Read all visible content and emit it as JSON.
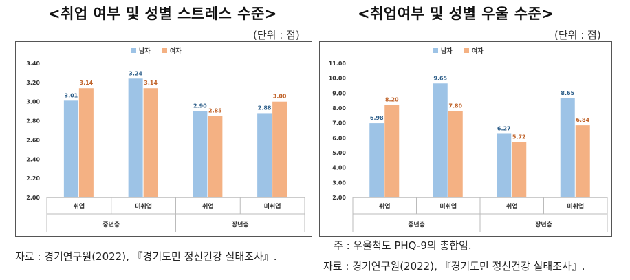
{
  "left": {
    "title": "<취업 여부 및 성별 스트레스 수준>",
    "unit": "(단위 : 점)",
    "source": "자료 : 경기연구원(2022), 『경기도민 정신건강 실태조사』.",
    "chart_data": {
      "type": "bar",
      "groups": [
        {
          "label": "중년층",
          "categories": [
            "취업",
            "미취업"
          ]
        },
        {
          "label": "장년층",
          "categories": [
            "취업",
            "미취업"
          ]
        }
      ],
      "categories": [
        "취업",
        "미취업",
        "취업",
        "미취업"
      ],
      "series": [
        {
          "name": "남자",
          "values": [
            3.01,
            3.24,
            2.9,
            2.88
          ],
          "labels": [
            "3.01",
            "3.24",
            "2.90",
            "2.88"
          ],
          "color": "#9dc3e6"
        },
        {
          "name": "여자",
          "values": [
            3.14,
            3.14,
            2.85,
            3.0
          ],
          "labels": [
            "3.14",
            "3.14",
            "2.85",
            "3.00"
          ],
          "color": "#f4b183"
        }
      ],
      "label_colors": [
        "#2e5f8a",
        "#c0632a"
      ],
      "ylim": [
        2.0,
        3.4
      ],
      "yticks": [
        "2.00",
        "2.20",
        "2.40",
        "2.60",
        "2.80",
        "3.00",
        "3.20",
        "3.40"
      ],
      "legend_position": "top-center",
      "grid": false
    }
  },
  "right": {
    "title": "<취업여부 및 성별 우울 수준>",
    "unit": "(단위 : 점)",
    "note": "주 : 우울척도 PHQ-9의 총합임.",
    "source": "자료 : 경기연구원(2022), 『경기도민 정신건강 실태조사』.",
    "chart_data": {
      "type": "bar",
      "groups": [
        {
          "label": "중년층",
          "categories": [
            "취업",
            "미취업"
          ]
        },
        {
          "label": "장년층",
          "categories": [
            "취업",
            "미취업"
          ]
        }
      ],
      "categories": [
        "취업",
        "미취업",
        "취업",
        "미취업"
      ],
      "series": [
        {
          "name": "남자",
          "values": [
            6.98,
            9.65,
            6.27,
            8.65
          ],
          "labels": [
            "6.98",
            "9.65",
            "6.27",
            "8.65"
          ],
          "color": "#9dc3e6"
        },
        {
          "name": "여자",
          "values": [
            8.2,
            7.8,
            5.72,
            6.84
          ],
          "labels": [
            "8.20",
            "7.80",
            "5.72",
            "6.84"
          ],
          "color": "#f4b183"
        }
      ],
      "label_colors": [
        "#2e5f8a",
        "#c0632a"
      ],
      "ylim": [
        2.0,
        11.0
      ],
      "yticks": [
        "2.00",
        "3.00",
        "4.00",
        "5.00",
        "6.00",
        "7.00",
        "8.00",
        "9.00",
        "10.00",
        "11.00"
      ],
      "legend_position": "top-center",
      "grid": false
    }
  }
}
